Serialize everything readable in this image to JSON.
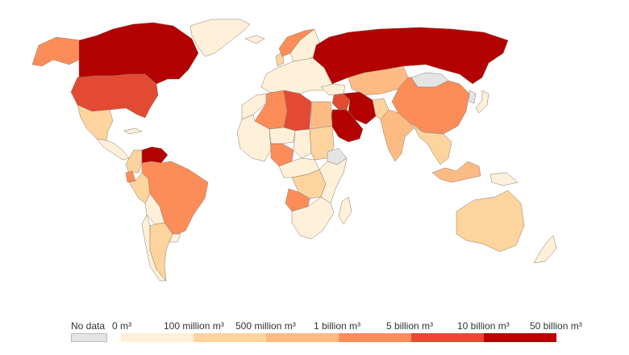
{
  "colors": {
    "no_data": "#e4e4e4",
    "scale": [
      "#fef0d9",
      "#fdd49e",
      "#fdbb84",
      "#fc8d59",
      "#e34a33",
      "#b30000"
    ],
    "border": "#8a7a6a",
    "background": "#ffffff"
  },
  "legend": {
    "no_data_label": "No data",
    "thresholds": [
      "0 m³",
      "100 million m³",
      "500 million m³",
      "1 billion m³",
      "5 billion m³",
      "10 billion m³",
      "50 billion m³"
    ]
  },
  "regions": [
    {
      "id": "canada",
      "bin": 5
    },
    {
      "id": "alaska",
      "bin": 3
    },
    {
      "id": "usa",
      "bin": 4
    },
    {
      "id": "mexico",
      "bin": 1
    },
    {
      "id": "central-america",
      "bin": 0
    },
    {
      "id": "cuba",
      "bin": 0
    },
    {
      "id": "greenland",
      "bin": 0
    },
    {
      "id": "venezuela",
      "bin": 5
    },
    {
      "id": "colombia",
      "bin": 1
    },
    {
      "id": "ecuador",
      "bin": 3
    },
    {
      "id": "peru",
      "bin": 1
    },
    {
      "id": "brazil",
      "bin": 3
    },
    {
      "id": "bolivia",
      "bin": 0
    },
    {
      "id": "chile",
      "bin": 0
    },
    {
      "id": "argentina",
      "bin": 1
    },
    {
      "id": "uruguay",
      "bin": 0
    },
    {
      "id": "iceland",
      "bin": 0
    },
    {
      "id": "norway",
      "bin": 3
    },
    {
      "id": "sweden-finland",
      "bin": 0
    },
    {
      "id": "europe",
      "bin": 0
    },
    {
      "id": "uk",
      "bin": 1
    },
    {
      "id": "russia",
      "bin": 5
    },
    {
      "id": "kazakhstan",
      "bin": 2
    },
    {
      "id": "mongolia",
      "bin": null
    },
    {
      "id": "china",
      "bin": 3
    },
    {
      "id": "iran",
      "bin": 5
    },
    {
      "id": "saudi-arabia",
      "bin": 5
    },
    {
      "id": "iraq",
      "bin": 4
    },
    {
      "id": "turkey",
      "bin": 0
    },
    {
      "id": "india",
      "bin": 2
    },
    {
      "id": "pakistan",
      "bin": 1
    },
    {
      "id": "southeast-asia",
      "bin": 1
    },
    {
      "id": "japan",
      "bin": 0
    },
    {
      "id": "korea",
      "bin": null
    },
    {
      "id": "indonesia",
      "bin": 2
    },
    {
      "id": "papua",
      "bin": 0
    },
    {
      "id": "australia",
      "bin": 1
    },
    {
      "id": "new-zealand",
      "bin": 0
    },
    {
      "id": "morocco",
      "bin": 0
    },
    {
      "id": "algeria",
      "bin": 3
    },
    {
      "id": "libya",
      "bin": 4
    },
    {
      "id": "egypt",
      "bin": 2
    },
    {
      "id": "west-africa",
      "bin": 0
    },
    {
      "id": "niger",
      "bin": 0
    },
    {
      "id": "chad",
      "bin": 0
    },
    {
      "id": "sudan",
      "bin": 1
    },
    {
      "id": "nigeria",
      "bin": 3
    },
    {
      "id": "ethiopia",
      "bin": null
    },
    {
      "id": "central-africa",
      "bin": 0
    },
    {
      "id": "congo",
      "bin": 1
    },
    {
      "id": "angola",
      "bin": 3
    },
    {
      "id": "east-africa",
      "bin": 0
    },
    {
      "id": "southern-africa",
      "bin": 0
    },
    {
      "id": "madagascar",
      "bin": 0
    }
  ]
}
